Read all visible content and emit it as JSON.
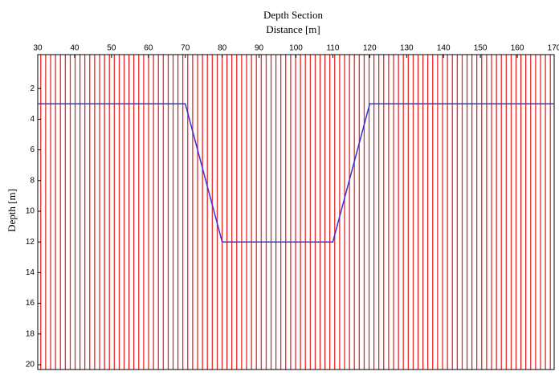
{
  "chart_data": {
    "type": "line",
    "title": "Depth Section",
    "x_label": "Distance [m]",
    "y_label": "Depth [m]",
    "x": [
      30,
      70,
      80,
      110,
      120,
      170
    ],
    "values": [
      3,
      3,
      12,
      12,
      3,
      3
    ],
    "color": "#3333dd",
    "trace_color": "#e00000",
    "xlim": [
      30,
      170
    ],
    "xticks": [
      30,
      40,
      50,
      60,
      70,
      80,
      90,
      100,
      110,
      120,
      130,
      140,
      150,
      160,
      170
    ],
    "ylim": [
      0,
      20
    ],
    "yticks": [
      2,
      4,
      6,
      8,
      10,
      12,
      14,
      16,
      18,
      20
    ],
    "y_inverted": true
  }
}
